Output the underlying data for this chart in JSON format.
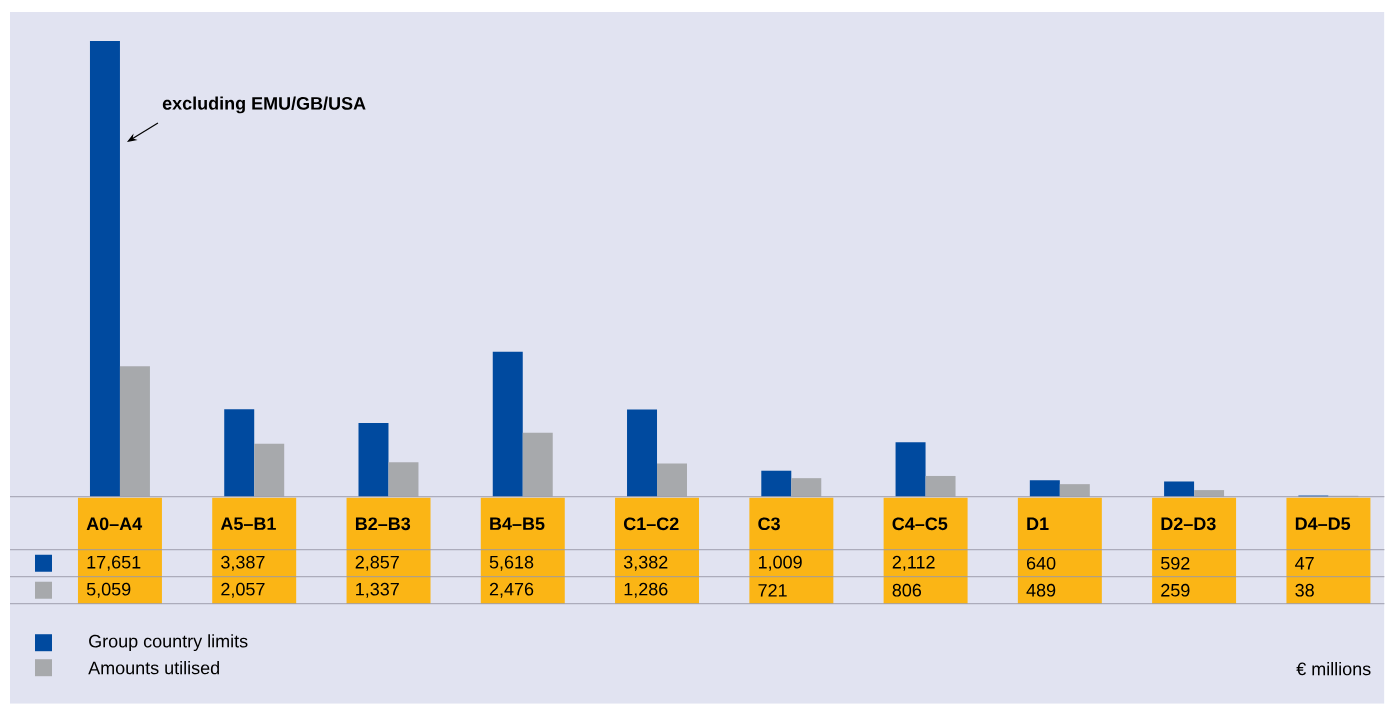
{
  "chart_data": {
    "type": "bar",
    "categories": [
      "A0–A4",
      "A5–B1",
      "B2–B3",
      "B4–B5",
      "C1–C2",
      "C3",
      "C4–C5",
      "D1",
      "D2–D3",
      "D4–D5"
    ],
    "series": [
      {
        "name": "Group country limits",
        "color": "#004a9f",
        "values": [
          17651,
          3387,
          2857,
          5618,
          3382,
          1009,
          2112,
          640,
          592,
          47
        ],
        "value_labels": [
          "17,651",
          "3,387",
          "2,857",
          "5,618",
          "3,382",
          "1,009",
          "2,112",
          "640",
          "592",
          "47"
        ]
      },
      {
        "name": "Amounts utilised",
        "color": "#a7a9ac",
        "values": [
          5059,
          2057,
          1337,
          2476,
          1286,
          721,
          806,
          489,
          259,
          38
        ],
        "value_labels": [
          "5,059",
          "2,057",
          "1,337",
          "2,476",
          "1,286",
          "721",
          "806",
          "489",
          "259",
          "38"
        ]
      }
    ],
    "legend": "bottom left",
    "annotations": [
      "excluding EMU/GB/USA",
      "€ millions"
    ]
  }
}
